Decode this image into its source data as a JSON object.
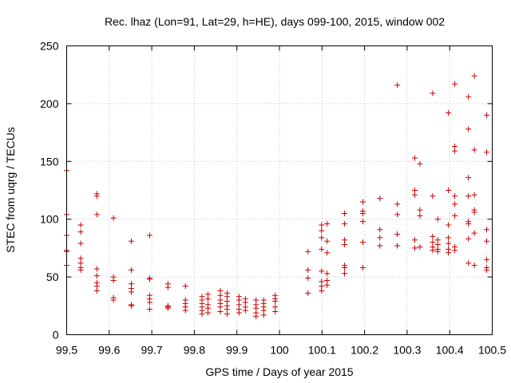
{
  "chart_data": {
    "type": "scatter",
    "title": "Rec. lhaz (Lon=91, Lat=29, h=HE), days 099-100, 2015, window 002",
    "xlabel": "GPS time / Days of year 2015",
    "ylabel": "STEC from uqrg / TECUs",
    "xlim": [
      99.5,
      100.5
    ],
    "ylim": [
      0,
      250
    ],
    "x_ticks": [
      99.5,
      99.6,
      99.7,
      99.8,
      99.9,
      100,
      100.1,
      100.2,
      100.3,
      100.4,
      100.5
    ],
    "x_tick_labels": [
      "99.5",
      "99.6",
      "99.7",
      "99.8",
      "99.9",
      "100",
      "100.1",
      "100.2",
      "100.3",
      "100.4",
      "100.5"
    ],
    "y_ticks": [
      0,
      50,
      100,
      150,
      200,
      250
    ],
    "y_tick_labels": [
      "0",
      "50",
      "100",
      "150",
      "200",
      "250"
    ],
    "grid": true,
    "marker": "plus",
    "color": "#cc0000",
    "series": [
      {
        "name": "STEC",
        "points": [
          [
            99.5,
            142
          ],
          [
            99.5,
            104
          ],
          [
            99.5,
            86
          ],
          [
            99.5,
            73
          ],
          [
            99.5,
            72
          ],
          [
            99.5,
            60
          ],
          [
            99.533,
            95
          ],
          [
            99.533,
            89
          ],
          [
            99.533,
            79
          ],
          [
            99.533,
            66
          ],
          [
            99.533,
            62
          ],
          [
            99.533,
            58
          ],
          [
            99.533,
            56
          ],
          [
            99.571,
            122
          ],
          [
            99.571,
            120
          ],
          [
            99.571,
            104
          ],
          [
            99.571,
            57
          ],
          [
            99.571,
            51
          ],
          [
            99.571,
            45
          ],
          [
            99.571,
            42
          ],
          [
            99.571,
            38
          ],
          [
            99.61,
            101
          ],
          [
            99.61,
            50
          ],
          [
            99.61,
            47
          ],
          [
            99.61,
            32
          ],
          [
            99.61,
            30
          ],
          [
            99.652,
            81
          ],
          [
            99.652,
            56
          ],
          [
            99.652,
            44
          ],
          [
            99.652,
            40
          ],
          [
            99.652,
            37
          ],
          [
            99.652,
            26
          ],
          [
            99.652,
            25
          ],
          [
            99.695,
            86
          ],
          [
            99.695,
            49
          ],
          [
            99.695,
            48
          ],
          [
            99.695,
            34
          ],
          [
            99.695,
            31
          ],
          [
            99.695,
            28
          ],
          [
            99.695,
            22
          ],
          [
            99.738,
            44
          ],
          [
            99.738,
            41
          ],
          [
            99.738,
            25
          ],
          [
            99.738,
            24
          ],
          [
            99.738,
            23
          ],
          [
            99.779,
            42
          ],
          [
            99.779,
            30
          ],
          [
            99.779,
            27
          ],
          [
            99.779,
            24
          ],
          [
            99.779,
            21
          ],
          [
            99.818,
            33
          ],
          [
            99.818,
            30
          ],
          [
            99.818,
            27
          ],
          [
            99.818,
            24
          ],
          [
            99.818,
            21
          ],
          [
            99.818,
            18
          ],
          [
            99.832,
            35
          ],
          [
            99.832,
            31
          ],
          [
            99.832,
            26
          ],
          [
            99.832,
            23
          ],
          [
            99.832,
            19
          ],
          [
            99.861,
            38
          ],
          [
            99.861,
            34
          ],
          [
            99.861,
            30
          ],
          [
            99.861,
            27
          ],
          [
            99.861,
            24
          ],
          [
            99.861,
            20
          ],
          [
            99.877,
            36
          ],
          [
            99.877,
            33
          ],
          [
            99.877,
            29
          ],
          [
            99.877,
            25
          ],
          [
            99.877,
            22
          ],
          [
            99.877,
            18
          ],
          [
            99.905,
            33
          ],
          [
            99.905,
            30
          ],
          [
            99.905,
            26
          ],
          [
            99.905,
            22
          ],
          [
            99.905,
            19
          ],
          [
            99.92,
            31
          ],
          [
            99.92,
            28
          ],
          [
            99.92,
            24
          ],
          [
            99.92,
            21
          ],
          [
            99.945,
            30
          ],
          [
            99.945,
            26
          ],
          [
            99.945,
            23
          ],
          [
            99.945,
            19
          ],
          [
            99.945,
            16
          ],
          [
            99.963,
            30
          ],
          [
            99.963,
            27
          ],
          [
            99.963,
            24
          ],
          [
            99.963,
            21
          ],
          [
            99.963,
            17
          ],
          [
            99.99,
            34
          ],
          [
            99.99,
            31
          ],
          [
            99.99,
            29
          ],
          [
            99.99,
            24
          ],
          [
            99.99,
            20
          ],
          [
            100.067,
            72
          ],
          [
            100.067,
            56
          ],
          [
            100.067,
            49
          ],
          [
            100.067,
            36
          ],
          [
            100.099,
            95
          ],
          [
            100.099,
            90
          ],
          [
            100.099,
            84
          ],
          [
            100.099,
            74
          ],
          [
            100.099,
            55
          ],
          [
            100.099,
            46
          ],
          [
            100.099,
            42
          ],
          [
            100.099,
            38
          ],
          [
            100.112,
            96
          ],
          [
            100.112,
            81
          ],
          [
            100.112,
            71
          ],
          [
            100.112,
            53
          ],
          [
            100.112,
            47
          ],
          [
            100.112,
            43
          ],
          [
            100.153,
            105
          ],
          [
            100.153,
            96
          ],
          [
            100.153,
            82
          ],
          [
            100.153,
            78
          ],
          [
            100.153,
            60
          ],
          [
            100.153,
            58
          ],
          [
            100.153,
            53
          ],
          [
            100.196,
            115
          ],
          [
            100.196,
            107
          ],
          [
            100.196,
            105
          ],
          [
            100.196,
            98
          ],
          [
            100.196,
            80
          ],
          [
            100.196,
            58
          ],
          [
            100.236,
            118
          ],
          [
            100.236,
            91
          ],
          [
            100.236,
            84
          ],
          [
            100.236,
            77
          ],
          [
            100.277,
            216
          ],
          [
            100.277,
            113
          ],
          [
            100.277,
            104
          ],
          [
            100.277,
            87
          ],
          [
            100.277,
            77
          ],
          [
            100.318,
            153
          ],
          [
            100.318,
            125
          ],
          [
            100.318,
            121
          ],
          [
            100.318,
            82
          ],
          [
            100.318,
            75
          ],
          [
            100.33,
            148
          ],
          [
            100.33,
            108
          ],
          [
            100.33,
            103
          ],
          [
            100.33,
            76
          ],
          [
            100.36,
            209
          ],
          [
            100.36,
            120
          ],
          [
            100.36,
            85
          ],
          [
            100.36,
            80
          ],
          [
            100.36,
            76
          ],
          [
            100.36,
            73
          ],
          [
            100.372,
            100
          ],
          [
            100.372,
            82
          ],
          [
            100.372,
            78
          ],
          [
            100.372,
            74
          ],
          [
            100.372,
            72
          ],
          [
            100.397,
            192
          ],
          [
            100.397,
            125
          ],
          [
            100.397,
            95
          ],
          [
            100.397,
            84
          ],
          [
            100.397,
            79
          ],
          [
            100.397,
            74
          ],
          [
            100.397,
            71
          ],
          [
            100.412,
            217
          ],
          [
            100.412,
            163
          ],
          [
            100.412,
            159
          ],
          [
            100.412,
            120
          ],
          [
            100.412,
            113
          ],
          [
            100.412,
            103
          ],
          [
            100.412,
            76
          ],
          [
            100.412,
            73
          ],
          [
            100.444,
            206
          ],
          [
            100.444,
            178
          ],
          [
            100.444,
            136
          ],
          [
            100.444,
            120
          ],
          [
            100.444,
            98
          ],
          [
            100.444,
            96
          ],
          [
            100.444,
            83
          ],
          [
            100.444,
            62
          ],
          [
            100.458,
            224
          ],
          [
            100.458,
            160
          ],
          [
            100.458,
            121
          ],
          [
            100.458,
            108
          ],
          [
            100.458,
            106
          ],
          [
            100.458,
            88
          ],
          [
            100.458,
            60
          ],
          [
            100.487,
            190
          ],
          [
            100.487,
            158
          ],
          [
            100.487,
            91
          ],
          [
            100.487,
            81
          ],
          [
            100.487,
            65
          ],
          [
            100.487,
            58
          ],
          [
            100.487,
            56
          ]
        ]
      }
    ]
  }
}
